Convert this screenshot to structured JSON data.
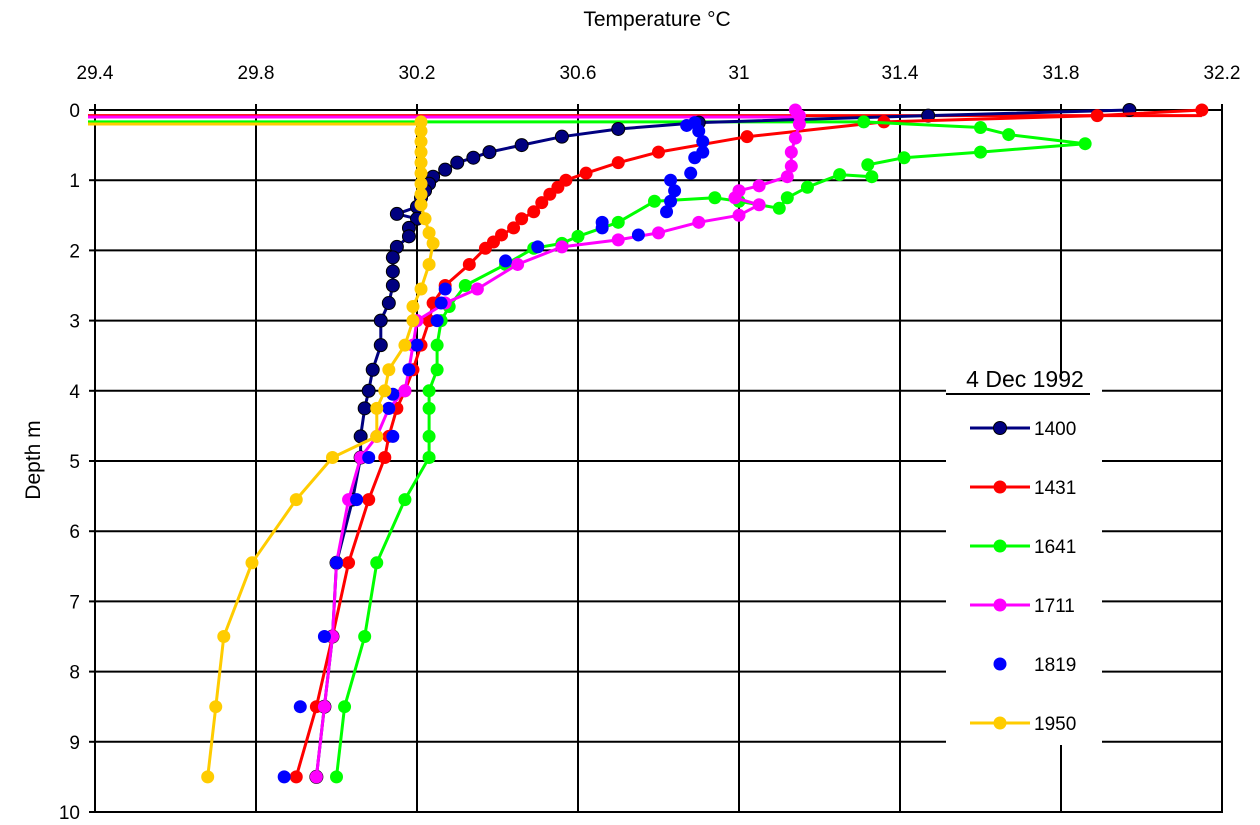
{
  "chart_data": {
    "type": "line",
    "xlabel": "Temperature °C",
    "ylabel": "Depth m",
    "xlim": [
      29.4,
      32.2
    ],
    "ylim": [
      0,
      10
    ],
    "x_ticks": [
      "29.4",
      "29.8",
      "30.2",
      "30.6",
      "31",
      "31.4",
      "31.8",
      "32.2"
    ],
    "y_ticks": [
      "0",
      "1",
      "2",
      "3",
      "4",
      "5",
      "6",
      "7",
      "8",
      "9",
      "10"
    ],
    "x_axis_position": "top",
    "y_inverted": true,
    "grid": true,
    "legend": {
      "title": "4 Dec 1992",
      "placement": "right"
    },
    "series": [
      {
        "name": "1400",
        "color": "#000080",
        "line": true,
        "markers": true,
        "points": [
          [
            31.97,
            0.0
          ],
          [
            31.47,
            0.08
          ],
          [
            30.9,
            0.18
          ],
          [
            30.7,
            0.27
          ],
          [
            30.56,
            0.38
          ],
          [
            30.46,
            0.5
          ],
          [
            30.38,
            0.6
          ],
          [
            30.34,
            0.68
          ],
          [
            30.3,
            0.75
          ],
          [
            30.27,
            0.85
          ],
          [
            30.24,
            0.95
          ],
          [
            30.23,
            1.05
          ],
          [
            30.22,
            1.15
          ],
          [
            30.21,
            1.25
          ],
          [
            30.2,
            1.38
          ],
          [
            30.15,
            1.48
          ],
          [
            30.2,
            1.55
          ],
          [
            30.18,
            1.68
          ],
          [
            30.18,
            1.8
          ],
          [
            30.15,
            1.95
          ],
          [
            30.14,
            2.1
          ],
          [
            30.14,
            2.3
          ],
          [
            30.14,
            2.5
          ],
          [
            30.13,
            2.75
          ],
          [
            30.11,
            3.0
          ],
          [
            30.11,
            3.35
          ],
          [
            30.09,
            3.7
          ],
          [
            30.08,
            4.0
          ],
          [
            30.07,
            4.25
          ],
          [
            30.06,
            4.65
          ],
          [
            30.06,
            4.95
          ],
          [
            30.04,
            5.55
          ],
          [
            30.0,
            6.45
          ],
          [
            29.99,
            7.5
          ],
          [
            29.97,
            8.5
          ],
          [
            29.95,
            9.5
          ]
        ]
      },
      {
        "name": "1431",
        "color": "#ff0000",
        "line": true,
        "markers": true,
        "points": [
          [
            32.15,
            0.0
          ],
          [
            31.89,
            0.08
          ],
          [
            31.36,
            0.17
          ],
          [
            31.02,
            0.38
          ],
          [
            30.8,
            0.6
          ],
          [
            30.7,
            0.75
          ],
          [
            30.62,
            0.9
          ],
          [
            30.57,
            1.0
          ],
          [
            30.55,
            1.1
          ],
          [
            30.53,
            1.2
          ],
          [
            30.51,
            1.32
          ],
          [
            30.49,
            1.45
          ],
          [
            30.46,
            1.55
          ],
          [
            30.44,
            1.68
          ],
          [
            30.41,
            1.78
          ],
          [
            30.39,
            1.88
          ],
          [
            30.37,
            1.97
          ],
          [
            30.33,
            2.2
          ],
          [
            30.27,
            2.5
          ],
          [
            30.24,
            2.75
          ],
          [
            30.23,
            3.0
          ],
          [
            30.21,
            3.35
          ],
          [
            30.19,
            3.7
          ],
          [
            30.17,
            4.0
          ],
          [
            30.15,
            4.25
          ],
          [
            30.13,
            4.65
          ],
          [
            30.12,
            4.95
          ],
          [
            30.08,
            5.55
          ],
          [
            30.03,
            6.45
          ],
          [
            29.99,
            7.5
          ],
          [
            29.95,
            8.5
          ],
          [
            29.9,
            9.5
          ]
        ]
      },
      {
        "name": "1641",
        "color": "#00ff00",
        "line": true,
        "markers": true,
        "points": [
          [
            31.31,
            0.17
          ],
          [
            31.6,
            0.25
          ],
          [
            31.67,
            0.35
          ],
          [
            31.86,
            0.48
          ],
          [
            31.6,
            0.6
          ],
          [
            31.41,
            0.68
          ],
          [
            31.32,
            0.78
          ],
          [
            31.33,
            0.95
          ],
          [
            31.25,
            0.92
          ],
          [
            31.17,
            1.1
          ],
          [
            31.12,
            1.25
          ],
          [
            31.1,
            1.4
          ],
          [
            31.0,
            1.3
          ],
          [
            30.94,
            1.25
          ],
          [
            30.79,
            1.3
          ],
          [
            30.7,
            1.6
          ],
          [
            30.6,
            1.8
          ],
          [
            30.56,
            1.9
          ],
          [
            30.49,
            1.97
          ],
          [
            30.42,
            2.2
          ],
          [
            30.32,
            2.5
          ],
          [
            30.28,
            2.8
          ],
          [
            30.26,
            3.0
          ],
          [
            30.25,
            3.35
          ],
          [
            30.25,
            3.7
          ],
          [
            30.23,
            4.0
          ],
          [
            30.23,
            4.25
          ],
          [
            30.23,
            4.65
          ],
          [
            30.23,
            4.95
          ],
          [
            30.17,
            5.55
          ],
          [
            30.1,
            6.45
          ],
          [
            30.07,
            7.5
          ],
          [
            30.02,
            8.5
          ],
          [
            30.0,
            9.5
          ]
        ]
      },
      {
        "name": "1711",
        "color": "#ff00ff",
        "line": true,
        "markers": true,
        "points": [
          [
            31.14,
            0.0
          ],
          [
            31.15,
            0.08
          ],
          [
            31.15,
            0.2
          ],
          [
            31.14,
            0.4
          ],
          [
            31.13,
            0.6
          ],
          [
            31.13,
            0.8
          ],
          [
            31.12,
            0.95
          ],
          [
            31.05,
            1.08
          ],
          [
            31.0,
            1.15
          ],
          [
            30.99,
            1.25
          ],
          [
            31.05,
            1.35
          ],
          [
            31.0,
            1.5
          ],
          [
            30.9,
            1.6
          ],
          [
            30.8,
            1.75
          ],
          [
            30.7,
            1.85
          ],
          [
            30.56,
            1.95
          ],
          [
            30.45,
            2.2
          ],
          [
            30.35,
            2.55
          ],
          [
            30.27,
            2.75
          ],
          [
            30.2,
            3.0
          ],
          [
            30.19,
            3.35
          ],
          [
            30.18,
            3.7
          ],
          [
            30.17,
            4.0
          ],
          [
            30.13,
            4.25
          ],
          [
            30.1,
            4.65
          ],
          [
            30.06,
            4.95
          ],
          [
            30.03,
            5.55
          ],
          [
            30.0,
            6.45
          ],
          [
            29.99,
            7.5
          ],
          [
            29.97,
            8.5
          ],
          [
            29.95,
            9.5
          ]
        ]
      },
      {
        "name": "1819",
        "color": "#0000ff",
        "line": false,
        "markers": true,
        "points": [
          [
            30.89,
            0.18
          ],
          [
            30.87,
            0.22
          ],
          [
            30.9,
            0.3
          ],
          [
            30.91,
            0.45
          ],
          [
            30.91,
            0.6
          ],
          [
            30.89,
            0.68
          ],
          [
            30.88,
            0.9
          ],
          [
            30.83,
            1.0
          ],
          [
            30.84,
            1.15
          ],
          [
            30.83,
            1.3
          ],
          [
            30.82,
            1.45
          ],
          [
            30.66,
            1.6
          ],
          [
            30.66,
            1.68
          ],
          [
            30.75,
            1.78
          ],
          [
            30.5,
            1.95
          ],
          [
            30.42,
            2.15
          ],
          [
            30.27,
            2.55
          ],
          [
            30.26,
            2.75
          ],
          [
            30.25,
            3.0
          ],
          [
            30.2,
            3.35
          ],
          [
            30.18,
            3.7
          ],
          [
            30.14,
            4.05
          ],
          [
            30.13,
            4.25
          ],
          [
            30.14,
            4.65
          ],
          [
            30.08,
            4.95
          ],
          [
            30.05,
            5.55
          ],
          [
            30.0,
            6.45
          ],
          [
            29.97,
            7.5
          ],
          [
            29.91,
            8.5
          ],
          [
            29.87,
            9.5
          ]
        ]
      },
      {
        "name": "1950",
        "color": "#ffcc00",
        "line": true,
        "markers": true,
        "points": [
          [
            30.21,
            0.17
          ],
          [
            30.21,
            0.3
          ],
          [
            30.21,
            0.45
          ],
          [
            30.21,
            0.6
          ],
          [
            30.21,
            0.75
          ],
          [
            30.21,
            0.9
          ],
          [
            30.21,
            1.05
          ],
          [
            30.21,
            1.2
          ],
          [
            30.21,
            1.35
          ],
          [
            30.22,
            1.55
          ],
          [
            30.23,
            1.75
          ],
          [
            30.24,
            1.9
          ],
          [
            30.23,
            2.2
          ],
          [
            30.21,
            2.55
          ],
          [
            30.19,
            2.8
          ],
          [
            30.19,
            3.0
          ],
          [
            30.17,
            3.35
          ],
          [
            30.13,
            3.7
          ],
          [
            30.12,
            4.0
          ],
          [
            30.1,
            4.25
          ],
          [
            30.1,
            4.65
          ],
          [
            29.99,
            4.95
          ],
          [
            29.9,
            5.55
          ],
          [
            29.79,
            6.45
          ],
          [
            29.72,
            7.5
          ],
          [
            29.7,
            8.5
          ],
          [
            29.68,
            9.5
          ]
        ]
      }
    ],
    "surface_lines": [
      {
        "series": "1431",
        "color": "#ff0000",
        "y": 0.08
      },
      {
        "series": "1711",
        "color": "#ff00ff",
        "y": 0.1
      },
      {
        "series": "1641",
        "color": "#00ff00",
        "y": 0.17
      },
      {
        "series": "1950",
        "color": "#ffcc00",
        "y": 0.2
      }
    ]
  }
}
